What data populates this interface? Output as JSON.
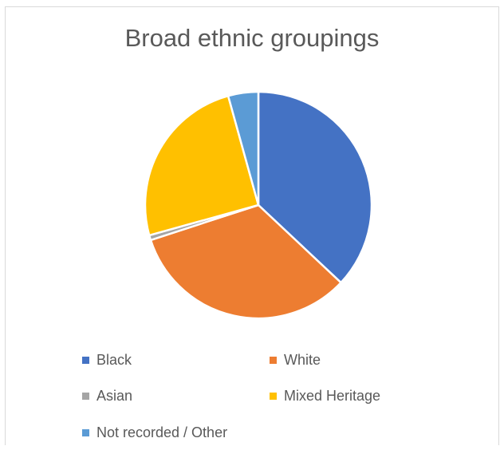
{
  "chart_data": {
    "type": "pie",
    "title": "Broad ethnic groupings",
    "categories": [
      "Black",
      "White",
      "Asian",
      "Mixed Heritage",
      "Not recorded / Other"
    ],
    "values": [
      37,
      33,
      0.7,
      25,
      4.3
    ],
    "colors": [
      "#4472C4",
      "#ED7D31",
      "#A5A5A5",
      "#FFC000",
      "#5B9BD5"
    ],
    "legend": "bottom"
  }
}
